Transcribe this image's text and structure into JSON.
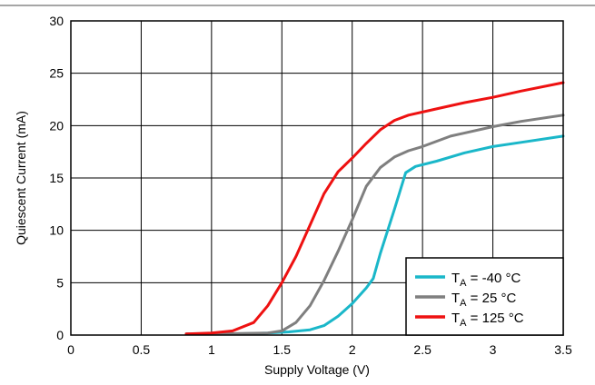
{
  "chart_data": {
    "type": "line",
    "xlabel": "Supply Voltage (V)",
    "ylabel": "Quiescent Current (mA)",
    "xlim": [
      0,
      3.5
    ],
    "ylim": [
      0,
      30
    ],
    "x_ticks": [
      "0",
      "0.5",
      "1",
      "1.5",
      "2",
      "2.5",
      "3",
      "3.5"
    ],
    "y_ticks": [
      "0",
      "5",
      "10",
      "15",
      "20",
      "25",
      "30"
    ],
    "grid": true,
    "legend_position": "bottom-right",
    "series": [
      {
        "name": "T_A = -40 °C",
        "legend_main": "T",
        "legend_sub": "A",
        "legend_rest": " = -40 °C",
        "color": "#1ab7c9",
        "points": [
          [
            0.82,
            0.1
          ],
          [
            1.0,
            0.1
          ],
          [
            1.2,
            0.12
          ],
          [
            1.4,
            0.2
          ],
          [
            1.55,
            0.3
          ],
          [
            1.7,
            0.5
          ],
          [
            1.8,
            0.9
          ],
          [
            1.9,
            1.8
          ],
          [
            2.0,
            3.0
          ],
          [
            2.1,
            4.5
          ],
          [
            2.15,
            5.4
          ],
          [
            2.2,
            7.8
          ],
          [
            2.3,
            12.0
          ],
          [
            2.38,
            15.5
          ],
          [
            2.45,
            16.1
          ],
          [
            2.6,
            16.6
          ],
          [
            2.8,
            17.4
          ],
          [
            3.0,
            18.0
          ],
          [
            3.2,
            18.4
          ],
          [
            3.5,
            19.0
          ]
        ]
      },
      {
        "name": "T_A = 25 °C",
        "legend_main": "T",
        "legend_sub": "A",
        "legend_rest": " = 25 °C",
        "color": "#7f7f7f",
        "points": [
          [
            0.82,
            0.1
          ],
          [
            1.0,
            0.1
          ],
          [
            1.2,
            0.15
          ],
          [
            1.4,
            0.2
          ],
          [
            1.5,
            0.4
          ],
          [
            1.6,
            1.2
          ],
          [
            1.7,
            2.8
          ],
          [
            1.8,
            5.2
          ],
          [
            1.9,
            8.0
          ],
          [
            2.0,
            11.0
          ],
          [
            2.1,
            14.2
          ],
          [
            2.2,
            16.0
          ],
          [
            2.3,
            17.0
          ],
          [
            2.4,
            17.6
          ],
          [
            2.5,
            18.0
          ],
          [
            2.7,
            19.0
          ],
          [
            3.0,
            19.9
          ],
          [
            3.2,
            20.4
          ],
          [
            3.5,
            21.0
          ]
        ]
      },
      {
        "name": "T_A = 125 °C",
        "legend_main": "T",
        "legend_sub": "A",
        "legend_rest": " = 125 °C",
        "color": "#ee1111",
        "points": [
          [
            0.82,
            0.1
          ],
          [
            1.0,
            0.2
          ],
          [
            1.15,
            0.4
          ],
          [
            1.3,
            1.2
          ],
          [
            1.4,
            2.8
          ],
          [
            1.5,
            5.0
          ],
          [
            1.6,
            7.5
          ],
          [
            1.7,
            10.5
          ],
          [
            1.8,
            13.5
          ],
          [
            1.9,
            15.6
          ],
          [
            2.0,
            16.9
          ],
          [
            2.1,
            18.3
          ],
          [
            2.2,
            19.6
          ],
          [
            2.3,
            20.5
          ],
          [
            2.4,
            21.0
          ],
          [
            2.6,
            21.6
          ],
          [
            2.8,
            22.2
          ],
          [
            3.0,
            22.7
          ],
          [
            3.2,
            23.3
          ],
          [
            3.5,
            24.1
          ]
        ]
      }
    ]
  }
}
